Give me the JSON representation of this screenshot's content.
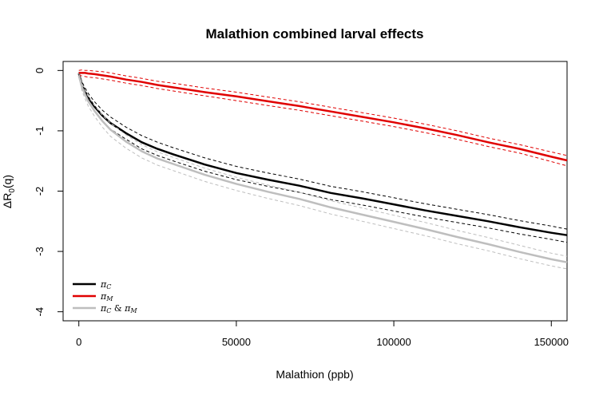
{
  "chart_data": {
    "type": "line",
    "title": "Malathion combined larval effects",
    "xlabel": "Malathion (ppb)",
    "ylabel": "ΔR0(q)",
    "ylabel_parts": {
      "main": "ΔR",
      "sub": "0",
      "tail": "(q)"
    },
    "xlim": [
      -5000,
      155000
    ],
    "ylim": [
      -4.15,
      0.15
    ],
    "x_ticks": [
      {
        "value": 0,
        "label": "0"
      },
      {
        "value": 50000,
        "label": "50000"
      },
      {
        "value": 100000,
        "label": "100000"
      },
      {
        "value": 150000,
        "label": "150000"
      }
    ],
    "y_ticks": [
      {
        "value": 0,
        "label": "0"
      },
      {
        "value": -1,
        "label": "-1"
      },
      {
        "value": -2,
        "label": "-2"
      },
      {
        "value": -3,
        "label": "-3"
      },
      {
        "value": -4,
        "label": "-4"
      }
    ],
    "grid": false,
    "legend_position": "bottom-left",
    "x": [
      0,
      1000,
      2000,
      3000,
      5000,
      7500,
      10000,
      15000,
      20000,
      25000,
      30000,
      40000,
      50000,
      60000,
      70000,
      80000,
      90000,
      100000,
      110000,
      120000,
      130000,
      140000,
      150000,
      155000
    ],
    "series": [
      {
        "name": "πC",
        "name_parts": {
          "main": "π",
          "sub": "C"
        },
        "color": "#000000",
        "values": [
          -0.05,
          -0.24,
          -0.35,
          -0.45,
          -0.6,
          -0.75,
          -0.87,
          -1.04,
          -1.19,
          -1.3,
          -1.39,
          -1.56,
          -1.7,
          -1.81,
          -1.91,
          -2.03,
          -2.12,
          -2.22,
          -2.32,
          -2.41,
          -2.5,
          -2.6,
          -2.69,
          -2.73
        ],
        "upper": [
          -0.03,
          -0.19,
          -0.29,
          -0.38,
          -0.52,
          -0.66,
          -0.77,
          -0.94,
          -1.08,
          -1.19,
          -1.28,
          -1.45,
          -1.59,
          -1.7,
          -1.8,
          -1.92,
          -2.01,
          -2.11,
          -2.21,
          -2.3,
          -2.39,
          -2.49,
          -2.58,
          -2.63
        ],
        "lower": [
          -0.07,
          -0.29,
          -0.41,
          -0.52,
          -0.68,
          -0.84,
          -0.97,
          -1.14,
          -1.3,
          -1.41,
          -1.5,
          -1.67,
          -1.81,
          -1.92,
          -2.02,
          -2.14,
          -2.23,
          -2.33,
          -2.43,
          -2.52,
          -2.61,
          -2.71,
          -2.8,
          -2.85
        ]
      },
      {
        "name": "πM",
        "name_parts": {
          "main": "π",
          "sub": "M"
        },
        "color": "#e00000",
        "values": [
          -0.04,
          -0.04,
          -0.04,
          -0.05,
          -0.06,
          -0.08,
          -0.1,
          -0.15,
          -0.19,
          -0.24,
          -0.28,
          -0.36,
          -0.43,
          -0.51,
          -0.59,
          -0.68,
          -0.77,
          -0.86,
          -0.96,
          -1.07,
          -1.19,
          -1.3,
          -1.43,
          -1.49
        ],
        "upper": [
          0.0,
          0.01,
          0.0,
          0.0,
          -0.01,
          -0.02,
          -0.04,
          -0.09,
          -0.13,
          -0.18,
          -0.21,
          -0.29,
          -0.36,
          -0.44,
          -0.52,
          -0.61,
          -0.7,
          -0.79,
          -0.89,
          -1.0,
          -1.12,
          -1.23,
          -1.35,
          -1.41
        ],
        "lower": [
          -0.08,
          -0.09,
          -0.1,
          -0.11,
          -0.12,
          -0.14,
          -0.16,
          -0.21,
          -0.25,
          -0.3,
          -0.34,
          -0.42,
          -0.5,
          -0.58,
          -0.66,
          -0.75,
          -0.84,
          -0.93,
          -1.03,
          -1.14,
          -1.26,
          -1.37,
          -1.51,
          -1.58
        ]
      },
      {
        "name": "πC & πM",
        "name_parts": {
          "main1": "π",
          "sub1": "C",
          "mid": " & ",
          "main2": "π",
          "sub2": "M"
        },
        "color": "#bebebe",
        "values": [
          -0.08,
          -0.28,
          -0.4,
          -0.51,
          -0.67,
          -0.84,
          -0.98,
          -1.18,
          -1.34,
          -1.46,
          -1.55,
          -1.73,
          -1.88,
          -2.01,
          -2.13,
          -2.27,
          -2.39,
          -2.51,
          -2.63,
          -2.76,
          -2.88,
          -3.01,
          -3.13,
          -3.18
        ],
        "upper": [
          -0.05,
          -0.22,
          -0.33,
          -0.43,
          -0.58,
          -0.74,
          -0.87,
          -1.07,
          -1.23,
          -1.35,
          -1.44,
          -1.62,
          -1.77,
          -1.9,
          -2.02,
          -2.16,
          -2.28,
          -2.4,
          -2.52,
          -2.65,
          -2.77,
          -2.9,
          -3.03,
          -3.08
        ],
        "lower": [
          -0.11,
          -0.34,
          -0.47,
          -0.59,
          -0.76,
          -0.94,
          -1.09,
          -1.29,
          -1.45,
          -1.57,
          -1.66,
          -1.84,
          -1.99,
          -2.12,
          -2.24,
          -2.38,
          -2.5,
          -2.62,
          -2.74,
          -2.87,
          -2.99,
          -3.12,
          -3.24,
          -3.29
        ]
      }
    ]
  }
}
